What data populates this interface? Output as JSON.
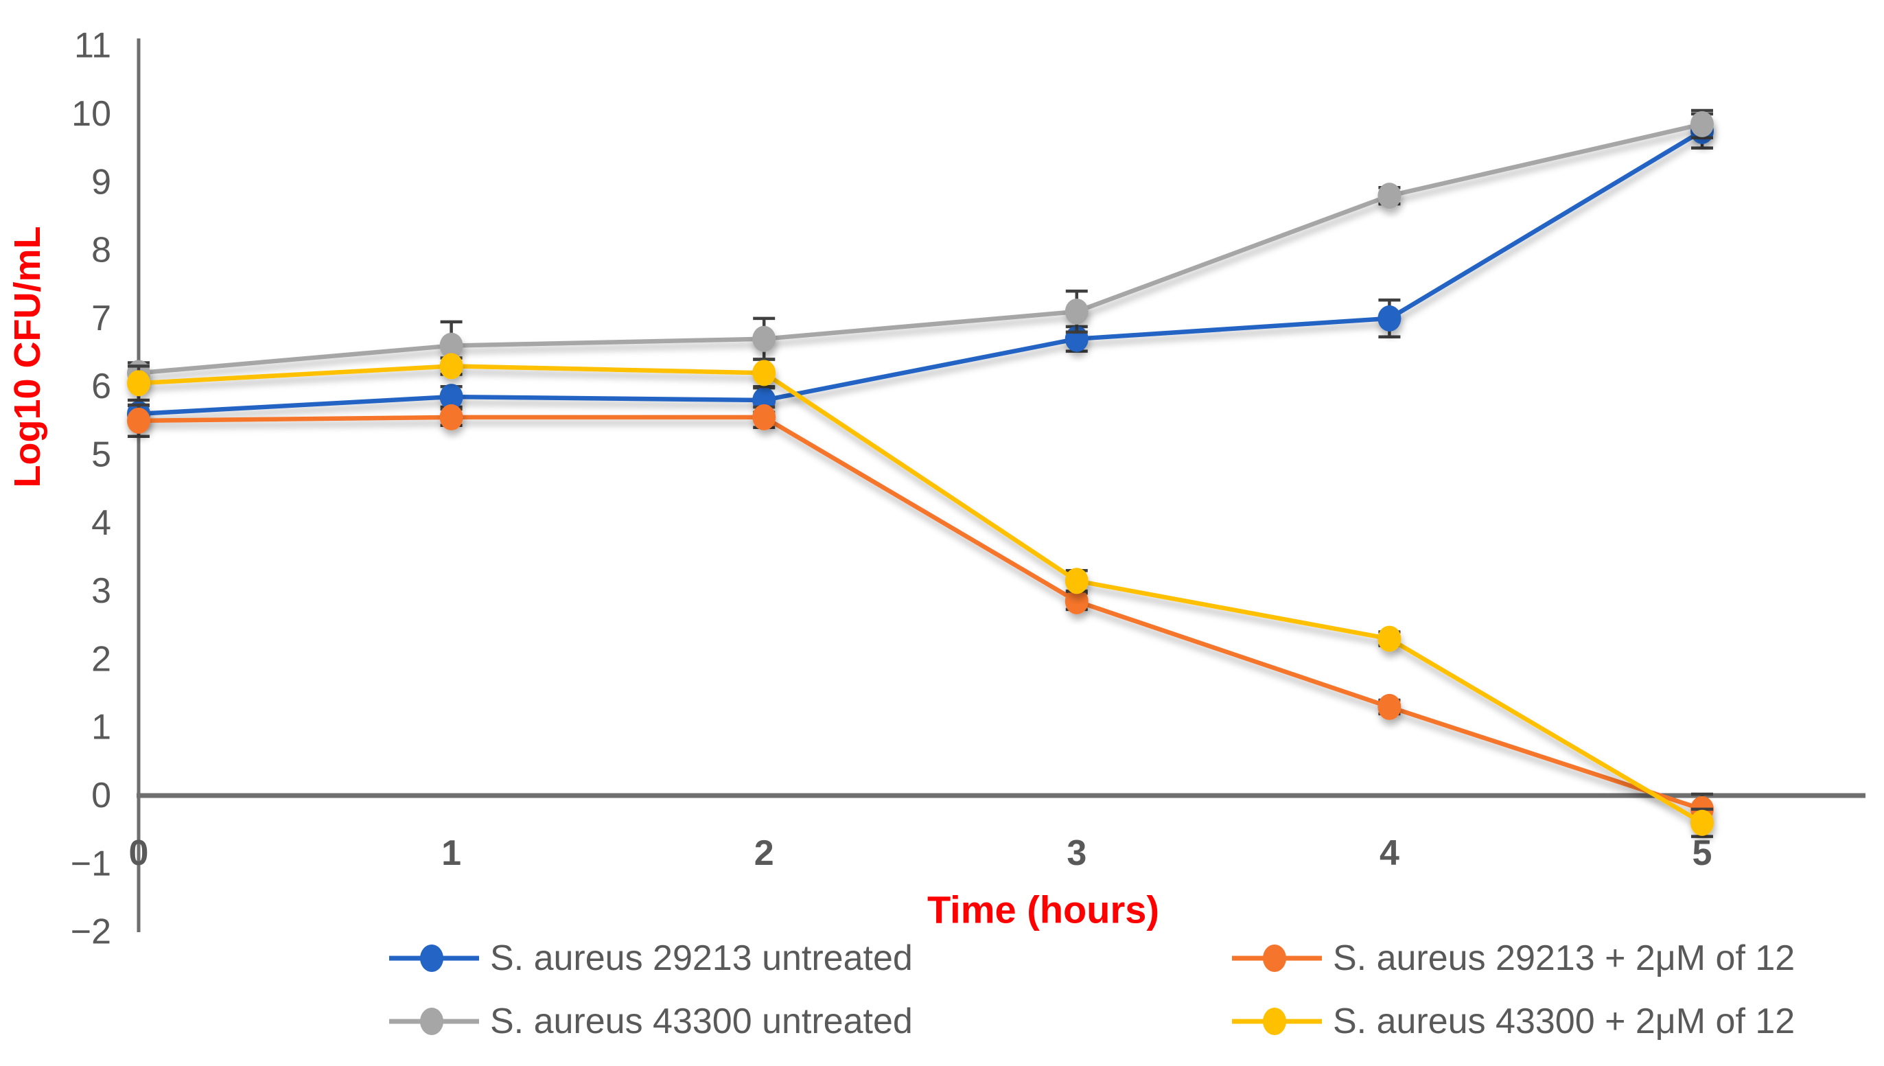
{
  "figure": {
    "background_color": "#FFFFFF"
  },
  "chart_data": {
    "type": "line",
    "title": "",
    "xlabel": "Time (hours)",
    "ylabel": "Log10 CFU/mL",
    "axis_title_color": "#FF0000",
    "tick_label_color": "#595959",
    "axis_line_color": "#6E6E6E",
    "error_bar_color": "#3F3F3F",
    "legend_text_color": "#595959",
    "grid": "off",
    "legend_position": "bottom, two columns, two rows",
    "x": [
      0,
      1,
      2,
      3,
      4,
      5
    ],
    "xticks": [
      0,
      1,
      2,
      3,
      4,
      5
    ],
    "xlim": [
      0,
      5
    ],
    "ylim": [
      -2,
      11
    ],
    "ytick_step": 1,
    "yticks": [
      -2,
      -1,
      0,
      1,
      2,
      3,
      4,
      5,
      6,
      7,
      8,
      9,
      10,
      11
    ],
    "series": [
      {
        "name": "S. aureus 29213  untreated",
        "color": "#2364C4",
        "values": [
          5.6,
          5.85,
          5.8,
          6.7,
          7.0,
          9.75
        ],
        "error": [
          0.12,
          0.15,
          0.18,
          0.18,
          0.27,
          0.25
        ]
      },
      {
        "name": "S. aureus 29213 + 2μM of 12",
        "color": "#F5752C",
        "values": [
          5.5,
          5.55,
          5.55,
          2.85,
          1.3,
          -0.2
        ],
        "error": [
          0.23,
          0.12,
          0.15,
          0.12,
          0.1,
          0.22
        ]
      },
      {
        "name": "S. aureus 43300 untreated",
        "color": "#A6A6A6",
        "values": [
          6.2,
          6.6,
          6.7,
          7.1,
          8.8,
          9.85
        ],
        "error": [
          0.15,
          0.35,
          0.3,
          0.3,
          0.12,
          0.2
        ]
      },
      {
        "name": "S. aureus 43300 + 2μM of 12",
        "color": "#FFC000",
        "values": [
          6.05,
          6.3,
          6.2,
          3.15,
          2.3,
          -0.4
        ],
        "error": [
          0.25,
          0.12,
          0.2,
          0.15,
          0.1,
          0.2
        ]
      }
    ]
  }
}
